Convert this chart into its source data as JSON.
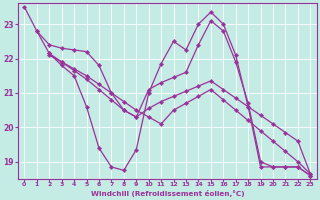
{
  "xlabel": "Windchill (Refroidissement éolien,°C)",
  "background_color": "#c5ebe5",
  "line_color": "#993399",
  "xlim": [
    -0.5,
    23.5
  ],
  "ylim": [
    18.5,
    23.6
  ],
  "yticks": [
    19,
    20,
    21,
    22,
    23
  ],
  "xticks": [
    0,
    1,
    2,
    3,
    4,
    5,
    6,
    7,
    8,
    9,
    10,
    11,
    12,
    13,
    14,
    15,
    16,
    17,
    18,
    19,
    20,
    21,
    22,
    23
  ],
  "lines": [
    {
      "x": [
        0,
        1,
        2,
        3,
        4,
        5,
        6,
        7,
        8,
        9,
        10,
        11,
        12,
        13,
        14,
        15,
        16,
        17,
        18,
        19,
        20,
        21,
        22,
        23
      ],
      "y": [
        23.5,
        22.8,
        22.15,
        21.8,
        21.5,
        20.6,
        19.4,
        18.85,
        18.75,
        19.35,
        21.0,
        21.85,
        22.5,
        22.25,
        23.0,
        23.35,
        23.0,
        22.1,
        20.6,
        18.85,
        18.85,
        18.85,
        18.85,
        18.6
      ]
    },
    {
      "x": [
        1,
        2,
        3,
        4,
        5,
        6,
        7,
        8,
        9,
        10,
        11,
        12,
        13,
        14,
        15,
        16,
        17,
        18,
        19,
        20,
        21,
        22,
        23
      ],
      "y": [
        22.8,
        22.4,
        22.3,
        22.25,
        22.2,
        21.8,
        21.0,
        20.5,
        20.3,
        21.1,
        21.3,
        21.45,
        21.6,
        22.4,
        23.1,
        22.8,
        21.9,
        20.7,
        19.0,
        18.85,
        18.85,
        18.85,
        18.6
      ]
    },
    {
      "x": [
        2,
        3,
        4,
        5,
        6,
        7,
        8,
        9,
        10,
        11,
        12,
        13,
        14,
        15,
        16,
        17,
        18,
        19,
        20,
        21,
        22,
        23
      ],
      "y": [
        22.15,
        21.9,
        21.7,
        21.5,
        21.25,
        21.0,
        20.75,
        20.5,
        20.3,
        20.1,
        20.5,
        20.7,
        20.9,
        21.1,
        20.8,
        20.5,
        20.2,
        19.9,
        19.6,
        19.3,
        19.0,
        18.65
      ]
    },
    {
      "x": [
        2,
        3,
        4,
        5,
        6,
        7,
        8,
        9,
        10,
        11,
        12,
        13,
        14,
        15,
        16,
        17,
        18,
        19,
        20,
        21,
        22,
        23
      ],
      "y": [
        22.1,
        21.9,
        21.65,
        21.4,
        21.1,
        20.8,
        20.5,
        20.3,
        20.55,
        20.75,
        20.9,
        21.05,
        21.2,
        21.35,
        21.1,
        20.85,
        20.6,
        20.35,
        20.1,
        19.85,
        19.6,
        18.65
      ]
    }
  ]
}
